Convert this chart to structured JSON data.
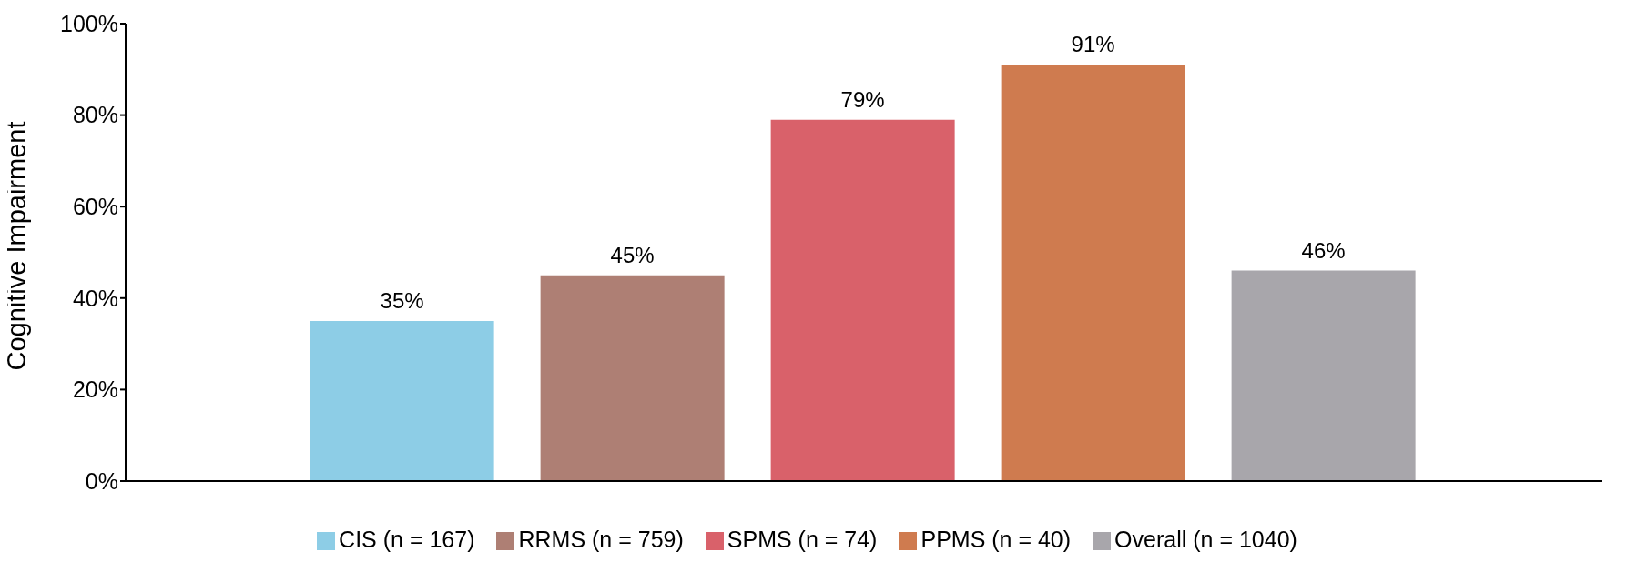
{
  "chart_data": {
    "type": "bar",
    "ylabel": "Cognitive Impairment",
    "categories": [
      null
    ],
    "series": [
      {
        "name": "CIS (n = 167)",
        "color": "#8dcde6",
        "values": [
          35
        ],
        "value_labels": [
          "35%"
        ]
      },
      {
        "name": "RRMS (n = 759)",
        "color": "#ae7f74",
        "values": [
          45
        ],
        "value_labels": [
          "45%"
        ]
      },
      {
        "name": "SPMS (n = 74)",
        "color": "#d9616a",
        "values": [
          79
        ],
        "value_labels": [
          "79%"
        ]
      },
      {
        "name": "PPMS (n = 40)",
        "color": "#cf7b4f",
        "values": [
          91
        ],
        "value_labels": [
          "91%"
        ]
      },
      {
        "name": "Overall (n = 1040)",
        "color": "#a8a6ab",
        "values": [
          46
        ],
        "value_labels": [
          "46%"
        ]
      }
    ],
    "ylim": [
      0,
      100
    ],
    "yticks": [
      {
        "value": 0,
        "label": "0%"
      },
      {
        "value": 20,
        "label": "20%"
      },
      {
        "value": 40,
        "label": "40%"
      },
      {
        "value": 60,
        "label": "60%"
      },
      {
        "value": 80,
        "label": "80%"
      },
      {
        "value": 100,
        "label": "100%"
      }
    ],
    "grid": false,
    "legend": "bottom"
  }
}
